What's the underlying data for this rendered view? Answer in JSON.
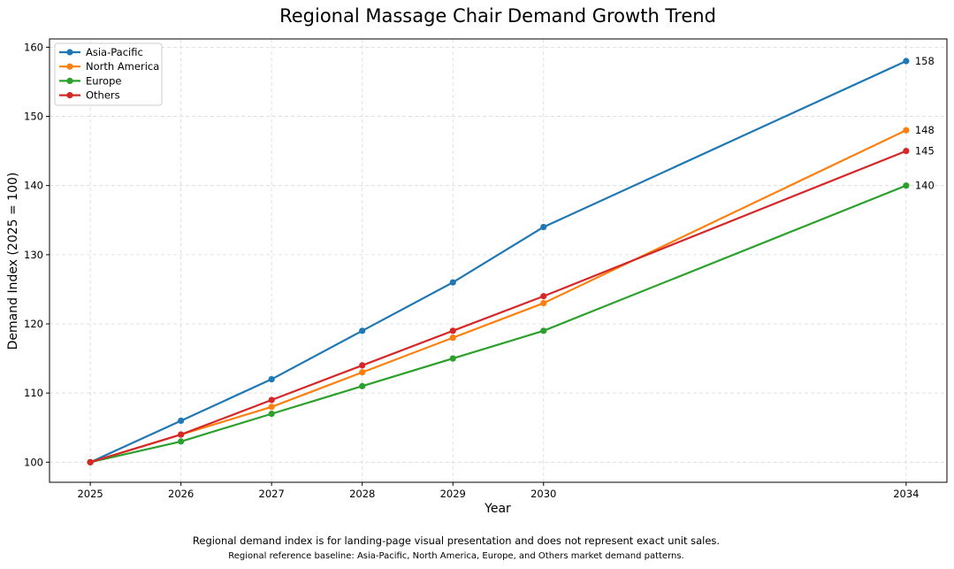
{
  "chart_data": {
    "type": "line",
    "title": "Regional Massage Chair Demand Growth Trend",
    "xlabel": "Year",
    "ylabel": "Demand Index (2025 = 100)",
    "x": [
      2025,
      2026,
      2027,
      2028,
      2029,
      2030,
      2034
    ],
    "xlim": [
      2024.55,
      2034.45
    ],
    "ylim": [
      97.1,
      161.2
    ],
    "yticks": [
      100,
      110,
      120,
      130,
      140,
      150,
      160
    ],
    "grid": true,
    "legend_position": "top-left",
    "series": [
      {
        "name": "Asia-Pacific",
        "color": "#1f77b4",
        "values": [
          100,
          106,
          112,
          119,
          126,
          134,
          158
        ],
        "end_label": "158"
      },
      {
        "name": "North America",
        "color": "#ff7f0e",
        "values": [
          100,
          104,
          108,
          113,
          118,
          123,
          148
        ],
        "end_label": "148"
      },
      {
        "name": "Europe",
        "color": "#2ca02c",
        "values": [
          100,
          103,
          107,
          111,
          115,
          119,
          140
        ],
        "end_label": "140"
      },
      {
        "name": "Others",
        "color": "#d62728",
        "values": [
          100,
          104,
          109,
          114,
          119,
          124,
          145
        ],
        "end_label": "145"
      }
    ]
  },
  "footnotes": {
    "line1": "Regional demand index is for landing-page visual presentation and does not represent exact unit sales.",
    "line2": "Regional reference baseline: Asia-Pacific, North America, Europe, and Others market demand patterns."
  }
}
